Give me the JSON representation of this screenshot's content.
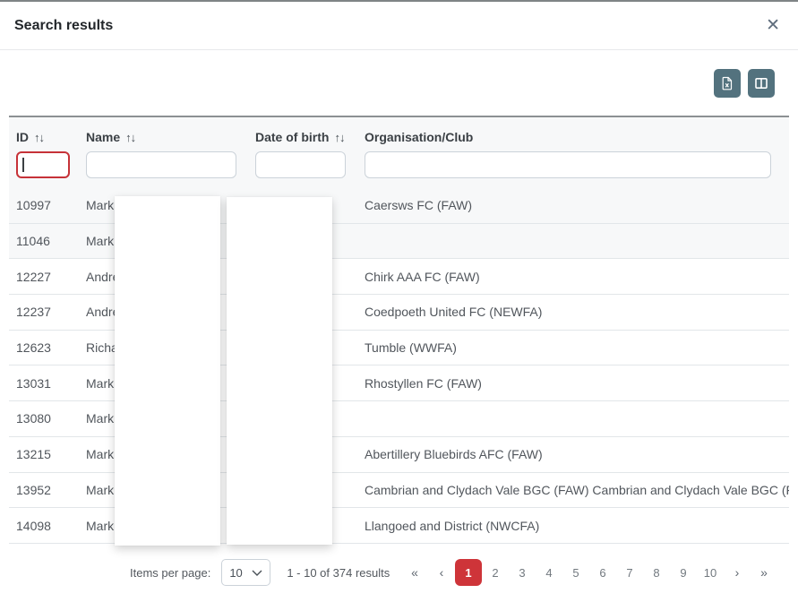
{
  "modal": {
    "title": "Search results",
    "close_icon": "✕"
  },
  "toolbar": {
    "buttons": [
      {
        "name": "export-excel",
        "icon": "file-excel-icon"
      },
      {
        "name": "choose-columns",
        "icon": "columns-icon"
      }
    ],
    "button_color": "#53727e"
  },
  "table": {
    "sort_icon": "↑↓",
    "columns": [
      {
        "label": "ID",
        "sortable": true
      },
      {
        "label": "Name",
        "sortable": true
      },
      {
        "label": "Date of birth",
        "sortable": true
      },
      {
        "label": "Organisation/Club",
        "sortable": false
      }
    ],
    "filters": {
      "id_value": "",
      "name_value": "",
      "dob_value": "",
      "org_value": ""
    },
    "rows": [
      {
        "id": "10997",
        "name": "Mark",
        "dob": "",
        "org": "Caersws FC (FAW)",
        "shaded": true
      },
      {
        "id": "11046",
        "name": "Mark",
        "dob": "",
        "org": "",
        "shaded": true
      },
      {
        "id": "12227",
        "name": "Andre",
        "dob": "",
        "org": "Chirk AAA FC (FAW)",
        "shaded": false
      },
      {
        "id": "12237",
        "name": "Andre",
        "dob": "",
        "org": "Coedpoeth United FC (NEWFA)",
        "shaded": false
      },
      {
        "id": "12623",
        "name": "Richa",
        "dob": "",
        "org": "Tumble (WWFA)",
        "shaded": false
      },
      {
        "id": "13031",
        "name": "Mark",
        "dob": "",
        "org": "Rhostyllen FC (FAW)",
        "shaded": false
      },
      {
        "id": "13080",
        "name": "Mark",
        "dob": "",
        "org": "",
        "shaded": false
      },
      {
        "id": "13215",
        "name": "Mark",
        "dob": "",
        "org": "Abertillery Bluebirds AFC (FAW)",
        "shaded": false
      },
      {
        "id": "13952",
        "name": "Mark",
        "dob": "",
        "org": "Cambrian and Clydach Vale BGC (FAW) Cambrian and Clydach Vale BGC (FAW)",
        "shaded": false
      },
      {
        "id": "14098",
        "name": "Mark",
        "dob": "",
        "org": "Llangoed and District (NWCFA)",
        "shaded": false
      }
    ]
  },
  "pagination": {
    "items_per_page_label": "Items per page:",
    "items_per_page_value": "10",
    "results_text": "1 - 10 of 374 results",
    "first_symbol": "«",
    "prev_symbol": "‹",
    "next_symbol": "›",
    "last_symbol": "»",
    "pages": [
      "1",
      "2",
      "3",
      "4",
      "5",
      "6",
      "7",
      "8",
      "9",
      "10"
    ],
    "active_page": "1",
    "active_color": "#ce3439"
  },
  "colors": {
    "accent_red": "#ce3439",
    "button_teal": "#53727e",
    "row_separator": "#e2e6e9",
    "shaded_row": "#f7f8f9"
  }
}
